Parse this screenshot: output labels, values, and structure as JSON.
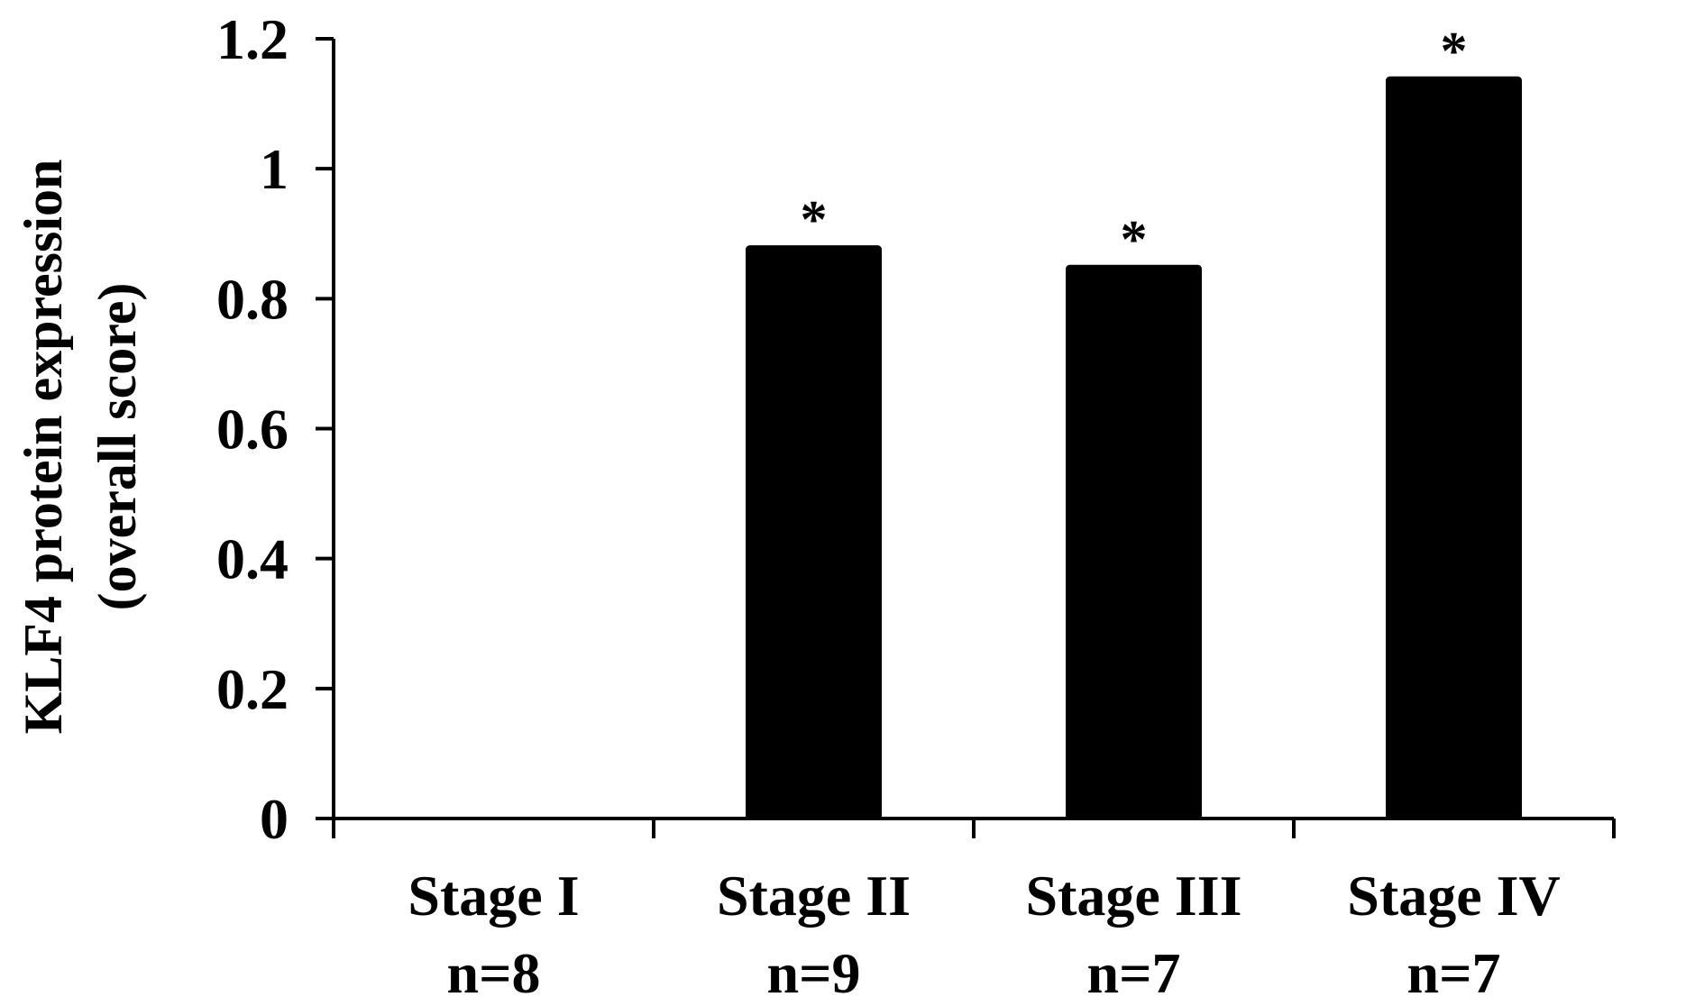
{
  "chart_data": {
    "type": "bar",
    "title": "",
    "ylabel": [
      "KLF4 protein expression",
      "(overall score)"
    ],
    "xlabel": "",
    "categories": [
      [
        "Stage I",
        "n=8"
      ],
      [
        "Stage II",
        "n=9"
      ],
      [
        "Stage III",
        "n=7"
      ],
      [
        "Stage IV",
        "n=7"
      ]
    ],
    "values": [
      0,
      0.88,
      0.85,
      1.14
    ],
    "annotations": [
      "",
      "*",
      "*",
      "*"
    ],
    "ylim": [
      0,
      1.2
    ],
    "yticks": [
      0,
      0.2,
      0.4,
      0.6,
      0.8,
      1,
      1.2
    ],
    "ytick_labels": [
      "0",
      "0.2",
      "0.4",
      "0.6",
      "0.8",
      "1",
      "1.2"
    ],
    "grid": false,
    "bar_color": "#000000",
    "legend": "none"
  }
}
